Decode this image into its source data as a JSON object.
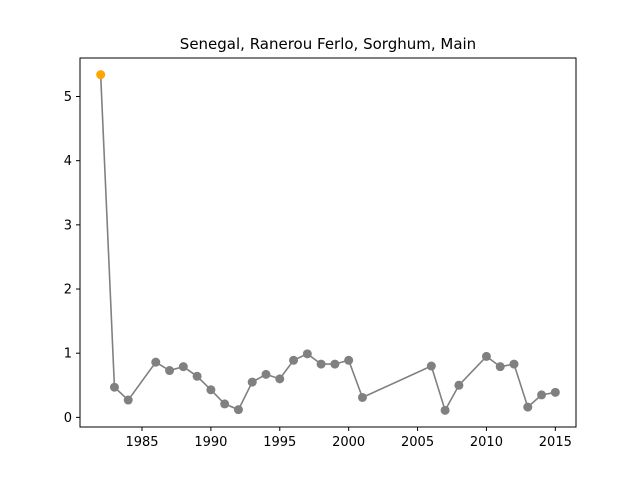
{
  "chart_data": {
    "type": "line",
    "title": "Senegal, Ranerou Ferlo, Sorghum, Main",
    "xlabel": "",
    "ylabel": "",
    "xlim": [
      1980.5,
      2016.5
    ],
    "ylim": [
      -0.15,
      5.6
    ],
    "xticks": [
      1985,
      1990,
      1995,
      2000,
      2005,
      2010,
      2015
    ],
    "yticks": [
      0,
      1,
      2,
      3,
      4,
      5
    ],
    "grid": false,
    "line_color": "#808080",
    "marker_color": "#808080",
    "highlight_color": "#ffa500",
    "highlight_index": 0,
    "series": [
      {
        "x": [
          1982,
          1983,
          1984,
          1986,
          1987,
          1988,
          1989,
          1990,
          1991,
          1992,
          1993,
          1994,
          1995,
          1996,
          1997,
          1998,
          1999,
          2000,
          2001,
          2006,
          2007,
          2008,
          2010,
          2011,
          2012,
          2013,
          2014,
          2015
        ],
        "y": [
          5.34,
          0.47,
          0.27,
          0.86,
          0.73,
          0.79,
          0.64,
          0.43,
          0.21,
          0.12,
          0.55,
          0.67,
          0.6,
          0.89,
          0.99,
          0.83,
          0.83,
          0.89,
          0.31,
          0.8,
          0.11,
          0.5,
          0.95,
          0.79,
          0.83,
          0.16,
          0.35,
          0.39
        ]
      }
    ]
  }
}
